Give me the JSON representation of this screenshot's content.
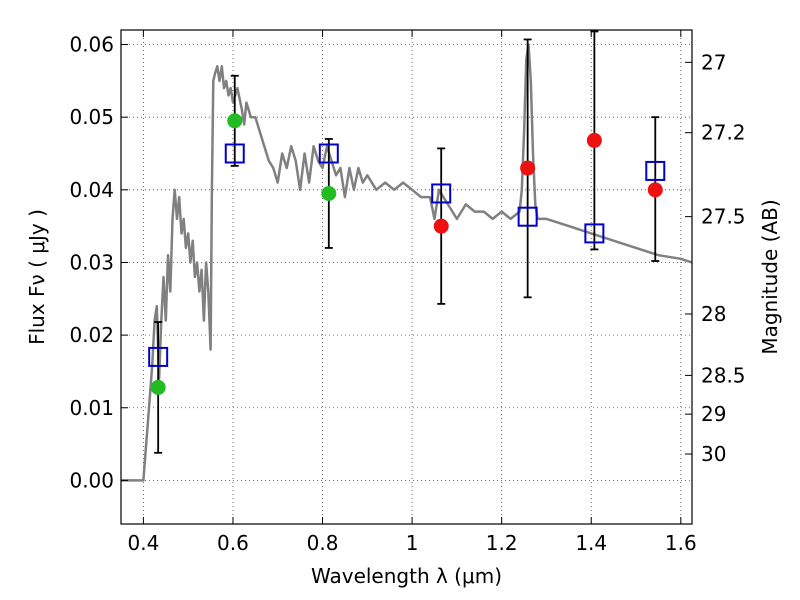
{
  "chart_data": {
    "type": "scatter",
    "title": "",
    "xlabel": "Wavelength  λ (μm)",
    "ylabel": "Flux  Fν  ( μJy )",
    "y2label": "Magnitude (AB)",
    "xlim": [
      0.35,
      1.625
    ],
    "ylim": [
      -0.006,
      0.062
    ],
    "grid": true,
    "legend": "none",
    "x_ticks": [
      0.4,
      0.6,
      0.8,
      1.0,
      1.2,
      1.4,
      1.6
    ],
    "x_tick_labels": [
      "0.4",
      "0.6",
      "0.8",
      "1",
      "1.2",
      "1.4",
      "1.6"
    ],
    "y_ticks": [
      0.0,
      0.01,
      0.02,
      0.03,
      0.04,
      0.05,
      0.06
    ],
    "y_tick_labels": [
      "0.00",
      "0.01",
      "0.02",
      "0.03",
      "0.04",
      "0.05",
      "0.06"
    ],
    "y2_ticks": [
      {
        "mag": 27,
        "label": "27"
      },
      {
        "mag": 27.2,
        "label": "27.2"
      },
      {
        "mag": 27.5,
        "label": "27.5"
      },
      {
        "mag": 28,
        "label": "28"
      },
      {
        "mag": 28.5,
        "label": "28.5"
      },
      {
        "mag": 29,
        "label": "29"
      },
      {
        "mag": 30,
        "label": "30"
      }
    ],
    "colors": {
      "sed": "#808080",
      "observed_detection": "#22bb22",
      "observed_upper": "#ee1111",
      "model_box": "#0000cc",
      "errorbar": "#000000",
      "grid": "#444444"
    },
    "sed_model": {
      "x": [
        0.35,
        0.4,
        0.405,
        0.41,
        0.415,
        0.42,
        0.425,
        0.43,
        0.435,
        0.44,
        0.445,
        0.45,
        0.455,
        0.46,
        0.465,
        0.47,
        0.475,
        0.48,
        0.485,
        0.49,
        0.495,
        0.5,
        0.505,
        0.51,
        0.515,
        0.52,
        0.525,
        0.53,
        0.535,
        0.54,
        0.545,
        0.55,
        0.553,
        0.556,
        0.56,
        0.565,
        0.57,
        0.575,
        0.58,
        0.585,
        0.59,
        0.595,
        0.6,
        0.61,
        0.62,
        0.625,
        0.63,
        0.64,
        0.65,
        0.66,
        0.67,
        0.68,
        0.69,
        0.7,
        0.71,
        0.72,
        0.73,
        0.74,
        0.75,
        0.76,
        0.77,
        0.78,
        0.79,
        0.8,
        0.81,
        0.82,
        0.83,
        0.84,
        0.85,
        0.86,
        0.87,
        0.88,
        0.89,
        0.9,
        0.92,
        0.94,
        0.96,
        0.98,
        1.0,
        1.02,
        1.04,
        1.05,
        1.06,
        1.07,
        1.08,
        1.09,
        1.1,
        1.12,
        1.14,
        1.16,
        1.18,
        1.2,
        1.22,
        1.24,
        1.245,
        1.25,
        1.255,
        1.26,
        1.265,
        1.27,
        1.275,
        1.28,
        1.3,
        1.35,
        1.4,
        1.45,
        1.5,
        1.55,
        1.6,
        1.625
      ],
      "y": [
        0.0,
        0.0,
        0.004,
        0.008,
        0.012,
        0.016,
        0.022,
        0.024,
        0.014,
        0.022,
        0.028,
        0.022,
        0.031,
        0.026,
        0.036,
        0.04,
        0.036,
        0.039,
        0.034,
        0.036,
        0.032,
        0.034,
        0.03,
        0.033,
        0.028,
        0.03,
        0.026,
        0.029,
        0.022,
        0.03,
        0.026,
        0.018,
        0.04,
        0.055,
        0.056,
        0.057,
        0.055,
        0.057,
        0.054,
        0.055,
        0.053,
        0.054,
        0.052,
        0.054,
        0.051,
        0.049,
        0.052,
        0.05,
        0.05,
        0.048,
        0.046,
        0.044,
        0.043,
        0.041,
        0.045,
        0.043,
        0.046,
        0.044,
        0.04,
        0.045,
        0.041,
        0.046,
        0.044,
        0.043,
        0.046,
        0.044,
        0.042,
        0.043,
        0.039,
        0.043,
        0.04,
        0.043,
        0.041,
        0.042,
        0.04,
        0.041,
        0.04,
        0.041,
        0.04,
        0.039,
        0.039,
        0.036,
        0.04,
        0.039,
        0.038,
        0.037,
        0.036,
        0.038,
        0.037,
        0.037,
        0.036,
        0.037,
        0.036,
        0.037,
        0.04,
        0.048,
        0.058,
        0.06,
        0.055,
        0.045,
        0.038,
        0.036,
        0.036,
        0.035,
        0.034,
        0.033,
        0.032,
        0.031,
        0.0305,
        0.03
      ]
    },
    "observed": [
      {
        "x": 0.433,
        "y": 0.0128,
        "yerr_low": 0.0038,
        "yerr_high": 0.0218,
        "kind": "detection"
      },
      {
        "x": 0.604,
        "y": 0.0495,
        "yerr_low": 0.0433,
        "yerr_high": 0.0557,
        "kind": "detection"
      },
      {
        "x": 0.814,
        "y": 0.0395,
        "yerr_low": 0.032,
        "yerr_high": 0.047,
        "kind": "detection"
      },
      {
        "x": 1.065,
        "y": 0.035,
        "yerr_low": 0.0243,
        "yerr_high": 0.0457,
        "kind": "upper"
      },
      {
        "x": 1.258,
        "y": 0.043,
        "yerr_low": 0.0252,
        "yerr_high": 0.0607,
        "kind": "upper"
      },
      {
        "x": 1.407,
        "y": 0.0468,
        "yerr_low": 0.0318,
        "yerr_high": 0.0618,
        "kind": "upper"
      },
      {
        "x": 1.543,
        "y": 0.04,
        "yerr_low": 0.0302,
        "yerr_high": 0.05,
        "kind": "upper"
      }
    ],
    "model_fluxes": [
      {
        "x": 0.433,
        "y": 0.017
      },
      {
        "x": 0.604,
        "y": 0.045
      },
      {
        "x": 0.814,
        "y": 0.045
      },
      {
        "x": 1.065,
        "y": 0.0395
      },
      {
        "x": 1.258,
        "y": 0.0363
      },
      {
        "x": 1.407,
        "y": 0.034
      },
      {
        "x": 1.543,
        "y": 0.0426
      }
    ]
  }
}
